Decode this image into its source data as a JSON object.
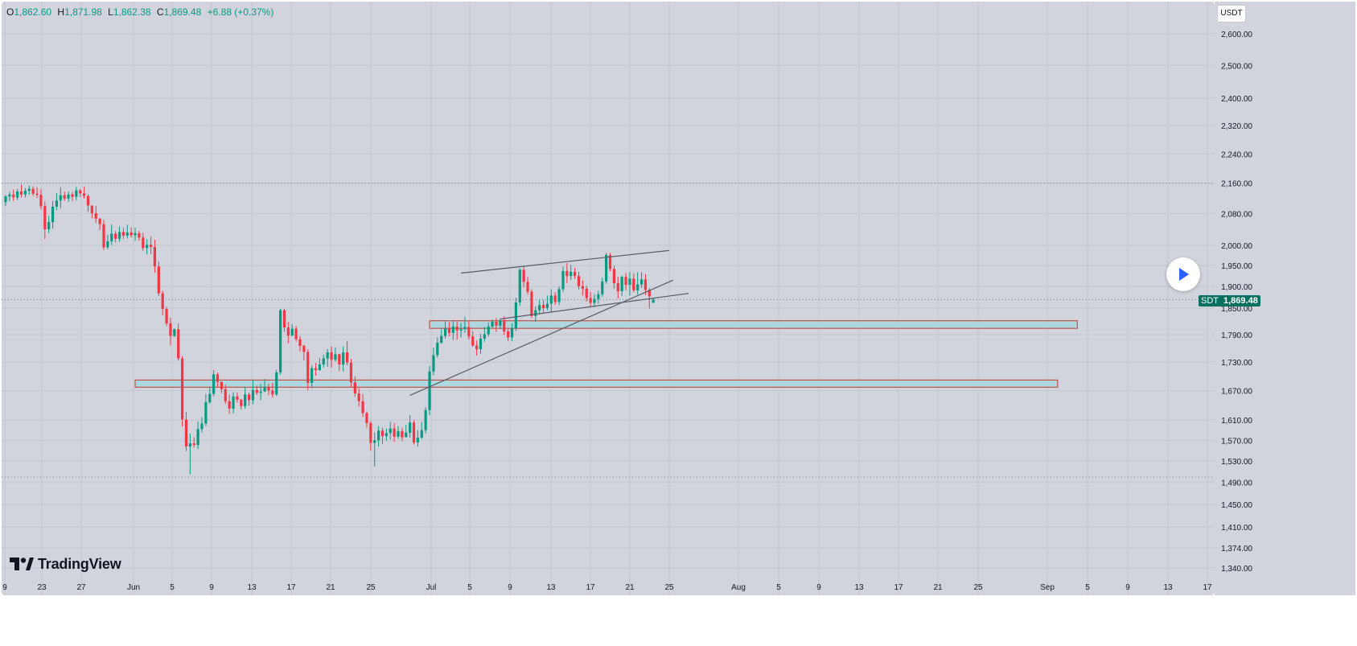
{
  "ohlc": {
    "o_label": "O",
    "o": "1,862.60",
    "h_label": "H",
    "h": "1,871.98",
    "l_label": "L",
    "l": "1,862.38",
    "c_label": "C",
    "c": "1,869.48",
    "change": "+6.88 (+0.37%)"
  },
  "currency": "USDT",
  "last_price": {
    "symbol": "SDT",
    "value": "1,869.48"
  },
  "logo_text": "TradingView",
  "colors": {
    "plot_bg": "#d1d4dc",
    "grid": "#c2c6cf",
    "up": "#089981",
    "down": "#f23645",
    "zone_fill": "#a9d7e0",
    "zone_border": "#c0392b",
    "trendline": "#555a64",
    "play": "#2962ff",
    "price_tag": "#08705e"
  },
  "y_ticks": [
    "2,600.00",
    "2,500.00",
    "2,400.00",
    "2,320.00",
    "2,240.00",
    "2,160.00",
    "2,080.00",
    "2,000.00",
    "1,950.00",
    "1,900.00",
    "1,850.00",
    "1,790.00",
    "1,730.00",
    "1,670.00",
    "1,610.00",
    "1,570.00",
    "1,530.00",
    "1,490.00",
    "1,450.00",
    "1,410.00",
    "1,374.00",
    "1,340.00"
  ],
  "x_ticks": [
    "9",
    "23",
    "27",
    "Jun",
    "5",
    "9",
    "13",
    "17",
    "21",
    "25",
    "Jul",
    "5",
    "9",
    "13",
    "17",
    "21",
    "25",
    "Aug",
    "5",
    "9",
    "13",
    "17",
    "21",
    "25",
    "Sep",
    "5",
    "9",
    "13",
    "17"
  ],
  "chart_data": {
    "type": "candlestick",
    "y_scale": "log",
    "ylim": [
      1320,
      2680
    ],
    "xlabel": "",
    "ylabel": "",
    "legend": "none",
    "grid": true,
    "dotted_levels": [
      2160,
      1500,
      1869.48
    ],
    "candles": [
      [
        2110,
        2125,
        2100,
        2128
      ],
      [
        2125,
        2130,
        2112,
        2137
      ],
      [
        2130,
        2122,
        2113,
        2143
      ],
      [
        2122,
        2138,
        2115,
        2145
      ],
      [
        2138,
        2130,
        2122,
        2156
      ],
      [
        2130,
        2140,
        2122,
        2147
      ],
      [
        2140,
        2145,
        2129,
        2154
      ],
      [
        2145,
        2132,
        2126,
        2152
      ],
      [
        2132,
        2129,
        2121,
        2149
      ],
      [
        2129,
        2099,
        2091,
        2144
      ],
      [
        2099,
        2040,
        2015,
        2112
      ],
      [
        2040,
        2058,
        2030,
        2074
      ],
      [
        2058,
        2098,
        2041,
        2113
      ],
      [
        2098,
        2114,
        2089,
        2133
      ],
      [
        2114,
        2128,
        2094,
        2149
      ],
      [
        2128,
        2119,
        2113,
        2138
      ],
      [
        2119,
        2130,
        2111,
        2138
      ],
      [
        2130,
        2124,
        2112,
        2137
      ],
      [
        2124,
        2141,
        2115,
        2150
      ],
      [
        2141,
        2133,
        2123,
        2145
      ],
      [
        2133,
        2126,
        2119,
        2151
      ],
      [
        2126,
        2101,
        2085,
        2131
      ],
      [
        2101,
        2081,
        2068,
        2101
      ],
      [
        2081,
        2067,
        2056,
        2100
      ],
      [
        2067,
        2053,
        2038,
        2069
      ],
      [
        2053,
        1995,
        1988,
        2064
      ],
      [
        1995,
        2010,
        1990,
        2026
      ],
      [
        2010,
        2029,
        2000,
        2052
      ],
      [
        2029,
        2016,
        2007,
        2036
      ],
      [
        2016,
        2033,
        2009,
        2047
      ],
      [
        2033,
        2024,
        2015,
        2044
      ],
      [
        2024,
        2032,
        2017,
        2052
      ],
      [
        2032,
        2025,
        2019,
        2045
      ],
      [
        2025,
        2030,
        2011,
        2044
      ],
      [
        2030,
        2019,
        2011,
        2036
      ],
      [
        2019,
        1993,
        1986,
        2031
      ],
      [
        1993,
        2001,
        1977,
        2015
      ],
      [
        2001,
        1996,
        1978,
        2022
      ],
      [
        1996,
        1948,
        1933,
        2014
      ],
      [
        1948,
        1884,
        1878,
        1960
      ],
      [
        1884,
        1848,
        1834,
        1890
      ],
      [
        1848,
        1815,
        1809,
        1853
      ],
      [
        1815,
        1787,
        1766,
        1828
      ],
      [
        1787,
        1802,
        1785,
        1804
      ],
      [
        1802,
        1738,
        1733,
        1815
      ],
      [
        1738,
        1611,
        1597,
        1743
      ],
      [
        1611,
        1558,
        1549,
        1626
      ],
      [
        1558,
        1564,
        1505,
        1583
      ],
      [
        1564,
        1561,
        1556,
        1576
      ],
      [
        1561,
        1592,
        1553,
        1607
      ],
      [
        1592,
        1603,
        1585,
        1616
      ],
      [
        1603,
        1646,
        1598,
        1663
      ],
      [
        1646,
        1663,
        1643,
        1676
      ],
      [
        1663,
        1704,
        1658,
        1713
      ],
      [
        1704,
        1688,
        1677,
        1708
      ],
      [
        1688,
        1673,
        1664,
        1689
      ],
      [
        1673,
        1648,
        1643,
        1682
      ],
      [
        1648,
        1633,
        1622,
        1662
      ],
      [
        1633,
        1658,
        1623,
        1667
      ],
      [
        1658,
        1651,
        1645,
        1666
      ],
      [
        1651,
        1638,
        1631,
        1653
      ],
      [
        1638,
        1662,
        1633,
        1677
      ],
      [
        1662,
        1650,
        1639,
        1666
      ],
      [
        1650,
        1671,
        1642,
        1692
      ],
      [
        1671,
        1665,
        1661,
        1680
      ],
      [
        1665,
        1668,
        1650,
        1684
      ],
      [
        1668,
        1677,
        1667,
        1694
      ],
      [
        1677,
        1670,
        1660,
        1684
      ],
      [
        1670,
        1662,
        1655,
        1686
      ],
      [
        1662,
        1708,
        1659,
        1714
      ],
      [
        1708,
        1845,
        1703,
        1848
      ],
      [
        1845,
        1806,
        1796,
        1848
      ],
      [
        1806,
        1788,
        1771,
        1818
      ],
      [
        1788,
        1803,
        1787,
        1813
      ],
      [
        1803,
        1780,
        1774,
        1809
      ],
      [
        1780,
        1765,
        1753,
        1787
      ],
      [
        1765,
        1752,
        1734,
        1768
      ],
      [
        1752,
        1686,
        1671,
        1758
      ],
      [
        1686,
        1717,
        1675,
        1723
      ],
      [
        1717,
        1713,
        1701,
        1728
      ],
      [
        1713,
        1725,
        1711,
        1739
      ],
      [
        1725,
        1738,
        1718,
        1746
      ],
      [
        1738,
        1751,
        1720,
        1758
      ],
      [
        1751,
        1735,
        1718,
        1764
      ],
      [
        1735,
        1747,
        1731,
        1762
      ],
      [
        1747,
        1725,
        1711,
        1748
      ],
      [
        1725,
        1751,
        1710,
        1764
      ],
      [
        1751,
        1729,
        1723,
        1776
      ],
      [
        1729,
        1687,
        1677,
        1737
      ],
      [
        1687,
        1664,
        1657,
        1700
      ],
      [
        1664,
        1648,
        1637,
        1675
      ],
      [
        1648,
        1624,
        1616,
        1663
      ],
      [
        1624,
        1604,
        1595,
        1627
      ],
      [
        1604,
        1565,
        1550,
        1608
      ],
      [
        1565,
        1570,
        1520,
        1585
      ],
      [
        1570,
        1589,
        1558,
        1598
      ],
      [
        1589,
        1578,
        1563,
        1595
      ],
      [
        1578,
        1584,
        1569,
        1593
      ],
      [
        1584,
        1593,
        1572,
        1606
      ],
      [
        1593,
        1577,
        1567,
        1604
      ],
      [
        1577,
        1588,
        1573,
        1598
      ],
      [
        1588,
        1576,
        1568,
        1595
      ],
      [
        1576,
        1585,
        1576,
        1600
      ],
      [
        1585,
        1605,
        1575,
        1620
      ],
      [
        1605,
        1566,
        1562,
        1610
      ],
      [
        1566,
        1575,
        1558,
        1590
      ],
      [
        1575,
        1590,
        1573,
        1606
      ],
      [
        1590,
        1630,
        1583,
        1636
      ],
      [
        1630,
        1710,
        1620,
        1722
      ],
      [
        1710,
        1745,
        1702,
        1761
      ],
      [
        1745,
        1772,
        1740,
        1784
      ],
      [
        1772,
        1787,
        1770,
        1802
      ],
      [
        1787,
        1804,
        1781,
        1822
      ],
      [
        1804,
        1794,
        1786,
        1818
      ],
      [
        1794,
        1808,
        1778,
        1822
      ],
      [
        1808,
        1799,
        1779,
        1820
      ],
      [
        1799,
        1802,
        1784,
        1816
      ],
      [
        1802,
        1807,
        1794,
        1830
      ],
      [
        1807,
        1786,
        1779,
        1822
      ],
      [
        1786,
        1766,
        1763,
        1798
      ],
      [
        1766,
        1758,
        1744,
        1777
      ],
      [
        1758,
        1781,
        1748,
        1792
      ],
      [
        1781,
        1791,
        1774,
        1807
      ],
      [
        1791,
        1808,
        1786,
        1817
      ],
      [
        1808,
        1819,
        1805,
        1824
      ],
      [
        1819,
        1810,
        1796,
        1827
      ],
      [
        1810,
        1822,
        1802,
        1826
      ],
      [
        1822,
        1797,
        1789,
        1831
      ],
      [
        1797,
        1784,
        1776,
        1804
      ],
      [
        1784,
        1804,
        1775,
        1815
      ],
      [
        1804,
        1863,
        1798,
        1874
      ],
      [
        1863,
        1940,
        1855,
        1944
      ],
      [
        1940,
        1911,
        1898,
        1948
      ],
      [
        1911,
        1888,
        1881,
        1923
      ],
      [
        1888,
        1832,
        1827,
        1894
      ],
      [
        1832,
        1845,
        1819,
        1854
      ],
      [
        1845,
        1857,
        1835,
        1869
      ],
      [
        1857,
        1850,
        1840,
        1869
      ],
      [
        1850,
        1860,
        1845,
        1879
      ],
      [
        1860,
        1879,
        1841,
        1894
      ],
      [
        1879,
        1864,
        1857,
        1887
      ],
      [
        1864,
        1894,
        1857,
        1900
      ],
      [
        1894,
        1937,
        1887,
        1948
      ],
      [
        1937,
        1925,
        1908,
        1956
      ],
      [
        1925,
        1935,
        1916,
        1952
      ],
      [
        1935,
        1925,
        1918,
        1945
      ],
      [
        1925,
        1901,
        1893,
        1935
      ],
      [
        1901,
        1895,
        1879,
        1915
      ],
      [
        1895,
        1873,
        1865,
        1902
      ],
      [
        1873,
        1862,
        1853,
        1887
      ],
      [
        1862,
        1871,
        1853,
        1882
      ],
      [
        1871,
        1882,
        1860,
        1890
      ],
      [
        1882,
        1912,
        1876,
        1921
      ],
      [
        1912,
        1976,
        1906,
        1981
      ],
      [
        1976,
        1942,
        1936,
        1981
      ],
      [
        1942,
        1908,
        1895,
        1950
      ],
      [
        1908,
        1889,
        1872,
        1923
      ],
      [
        1889,
        1923,
        1878,
        1926
      ],
      [
        1923,
        1904,
        1891,
        1932
      ],
      [
        1904,
        1919,
        1879,
        1935
      ],
      [
        1919,
        1891,
        1887,
        1932
      ],
      [
        1891,
        1905,
        1881,
        1934
      ],
      [
        1905,
        1917,
        1897,
        1934
      ],
      [
        1917,
        1892,
        1880,
        1930
      ],
      [
        1892,
        1877,
        1849,
        1896
      ],
      [
        1862,
        1869,
        1862,
        1872
      ]
    ],
    "trendlines": [
      {
        "p1": [
          116,
          1932
        ],
        "p2": [
          169,
          1987
        ]
      },
      {
        "p1": [
          103,
          1660
        ],
        "p2": [
          170,
          1915
        ]
      },
      {
        "p1": [
          126,
          1825
        ],
        "p2": [
          174,
          1884
        ]
      }
    ],
    "zones": [
      {
        "x_from": 108,
        "x_to": 273,
        "y_low": 1804,
        "y_high": 1821
      },
      {
        "x_from": 33,
        "x_to": 268,
        "y_low": 1677,
        "y_high": 1692
      }
    ]
  }
}
